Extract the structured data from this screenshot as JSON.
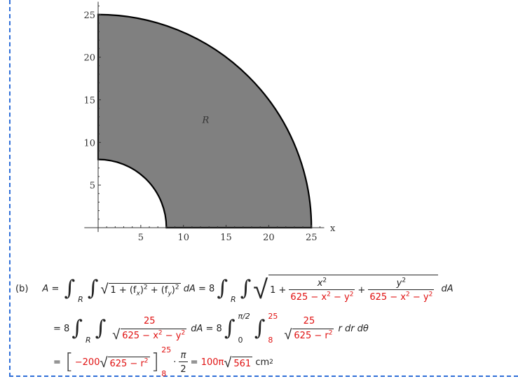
{
  "chart_data": {
    "type": "area",
    "description_of_marks": "shaded quarter annulus region",
    "region_label": "R",
    "inner_radius": 8,
    "outer_radius": 25,
    "theta_range": [
      "0",
      "π/2"
    ],
    "xlabel": "x",
    "ylabel": "",
    "xlim": [
      -0.3,
      26.5
    ],
    "ylim": [
      -1,
      26.5
    ],
    "x_ticks": [
      5,
      10,
      15,
      20,
      25
    ],
    "y_ticks": [
      5,
      10,
      15,
      20,
      25
    ],
    "fill_color": "#808080",
    "grid": false
  },
  "solution": {
    "part_label": "(b)",
    "line1": {
      "lhs": "A",
      "eq": "=",
      "sub_R": "R",
      "sqrt_body": "1 + (f",
      "fx_sub": "x",
      "mid": ")",
      "sq": "2",
      "plus": " + (f",
      "fy_sub": "y",
      "dA": "dA",
      "eq8": "= 8",
      "one_plus": "1 +",
      "x2": "x",
      "y2": "y",
      "den": "625 − x",
      "den_tail": " − y",
      "plus2": "+"
    },
    "line2": {
      "eq8": "= 8",
      "num": "25",
      "den": "625 − x",
      "den_tail": " − y",
      "dA": "dA",
      "eq8b": "= 8",
      "upper_theta": "π/2",
      "lower_theta": "0",
      "upper_r": "25",
      "lower_r": "8",
      "num2": "25",
      "den2": "625 − r",
      "tail": "r dr dθ"
    },
    "line3": {
      "eq": "=",
      "coef": "−200",
      "body": "625 − r",
      "upper": "25",
      "lower": "8",
      "dot": "·",
      "pi": "π",
      "two": "2",
      "eq2": "=",
      "result": "100π",
      "result_rad": "561",
      "unit": "cm",
      "unit_exp": "2"
    },
    "accent_color": "#e01010"
  }
}
